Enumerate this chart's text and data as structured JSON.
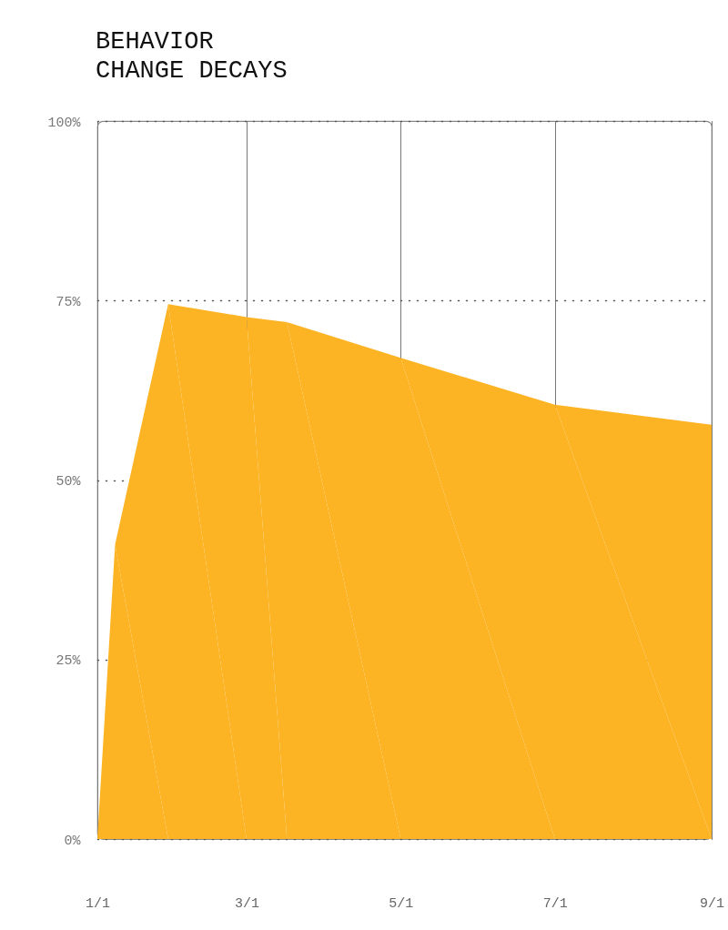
{
  "chart_data": {
    "type": "area",
    "title": "BEHAVIOR CHANGE DECAYS",
    "x": [
      "--01-01",
      "--01-08",
      "--01-29",
      "--03-01",
      "--03-17",
      "--05-01",
      "--07-01",
      "--09-01"
    ],
    "series": [
      {
        "color": "#fcb425",
        "values": [
          0,
          41,
          74.5,
          72.7,
          72,
          67,
          60.5,
          57.7
        ]
      }
    ],
    "xlim": [
      "--01-01",
      "--09-01"
    ],
    "xticks": [
      {
        "value": "--01-01",
        "label": "1/1"
      },
      {
        "value": "--03-01",
        "label": "3/1"
      },
      {
        "value": "--05-01",
        "label": "5/1"
      },
      {
        "value": "--07-01",
        "label": "7/1"
      },
      {
        "value": "--09-01",
        "label": "9/1"
      }
    ],
    "ylim": [
      0,
      100
    ],
    "yticks": [
      {
        "value": 0,
        "label": "0%"
      },
      {
        "value": 25,
        "label": "25%"
      },
      {
        "value": 50,
        "label": "50%"
      },
      {
        "value": 75,
        "label": "75%"
      },
      {
        "value": 100,
        "label": "100%"
      }
    ],
    "grid": true
  }
}
